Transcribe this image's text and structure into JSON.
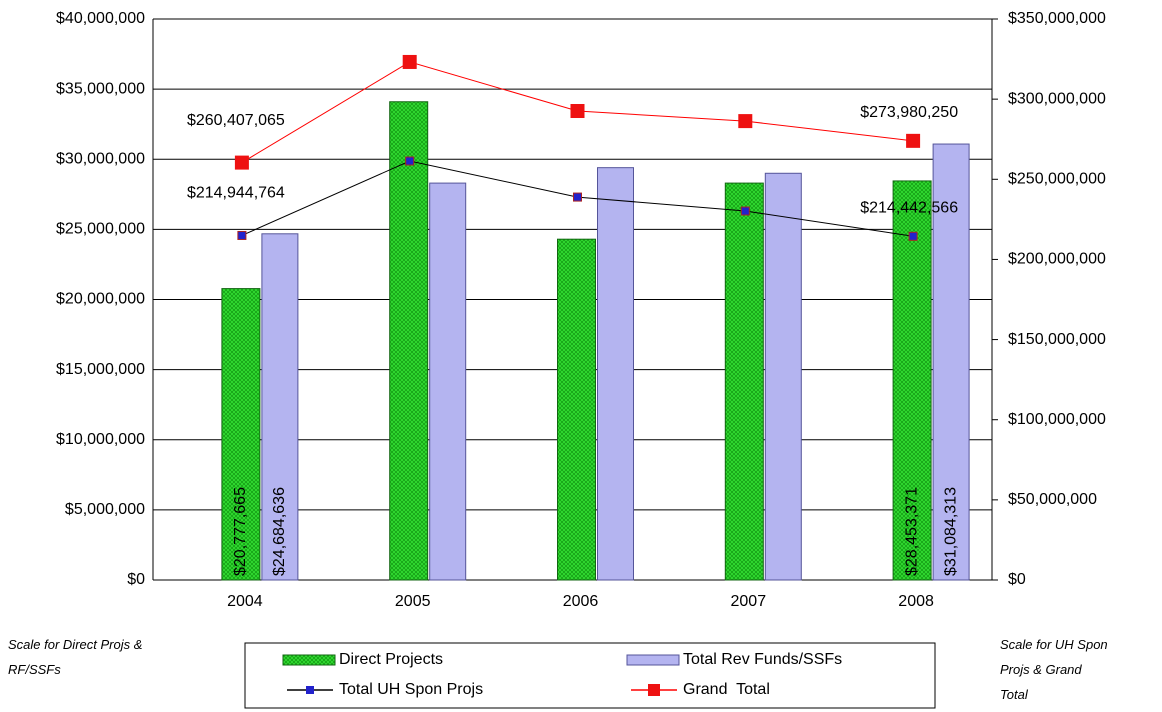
{
  "chart_data": {
    "type": "bar_line",
    "categories": [
      "2004",
      "2005",
      "2006",
      "2007",
      "2008"
    ],
    "series": [
      {
        "name": "Direct Projects",
        "color": "#33dd33",
        "kind": "bar",
        "values": [
          20777665,
          34100000,
          24300000,
          28300000,
          28453371
        ],
        "value_labels": [
          "$20,777,665",
          null,
          null,
          null,
          "$28,453,371"
        ]
      },
      {
        "name": "Total Rev Funds/SSFs",
        "color": "#b4b4f0",
        "kind": "bar",
        "values": [
          24684636,
          28300000,
          29400000,
          29000000,
          31084313
        ],
        "value_labels": [
          "$24,684,636",
          null,
          null,
          null,
          "$31,084,313"
        ]
      },
      {
        "name": "Total UH Spon Projs",
        "color": "#000000",
        "marker_color": "#2222cc",
        "kind": "line",
        "axis": "y2",
        "values": [
          214944764,
          261400000,
          238900000,
          230200000,
          214442566
        ],
        "value_labels": [
          "$214,944,764",
          null,
          null,
          null,
          "$214,442,566"
        ]
      },
      {
        "name": "Grand  Total",
        "color": "#ff0000",
        "marker_color": "#ee1111",
        "kind": "line",
        "axis": "y2",
        "values": [
          260407065,
          323200000,
          292600000,
          286300000,
          273980250
        ],
        "value_labels": [
          "$260,407,065",
          null,
          null,
          null,
          "$273,980,250"
        ]
      }
    ],
    "ylim": [
      0,
      40000000
    ],
    "yticks": [
      {
        "value": 0,
        "label": "$0"
      },
      {
        "value": 5000000,
        "label": "$5,000,000"
      },
      {
        "value": 10000000,
        "label": "$10,000,000"
      },
      {
        "value": 15000000,
        "label": "$15,000,000"
      },
      {
        "value": 20000000,
        "label": "$20,000,000"
      },
      {
        "value": 25000000,
        "label": "$25,000,000"
      },
      {
        "value": 30000000,
        "label": "$30,000,000"
      },
      {
        "value": 35000000,
        "label": "$35,000,000"
      },
      {
        "value": 40000000,
        "label": "$40,000,000"
      }
    ],
    "y2lim": [
      0,
      350000000
    ],
    "y2ticks": [
      {
        "value": 0,
        "label": "$0"
      },
      {
        "value": 50000000,
        "label": "$50,000,000"
      },
      {
        "value": 100000000,
        "label": "$100,000,000"
      },
      {
        "value": 150000000,
        "label": "$150,000,000"
      },
      {
        "value": 200000000,
        "label": "$200,000,000"
      },
      {
        "value": 250000000,
        "label": "$250,000,000"
      },
      {
        "value": 300000000,
        "label": "$300,000,000"
      },
      {
        "value": 350000000,
        "label": "$350,000,000"
      }
    ],
    "grid": true,
    "annotations": [
      "Scale for Direct Projs & RF/SSFs",
      "Scale for UH Spon Projs & Grand Total"
    ]
  }
}
